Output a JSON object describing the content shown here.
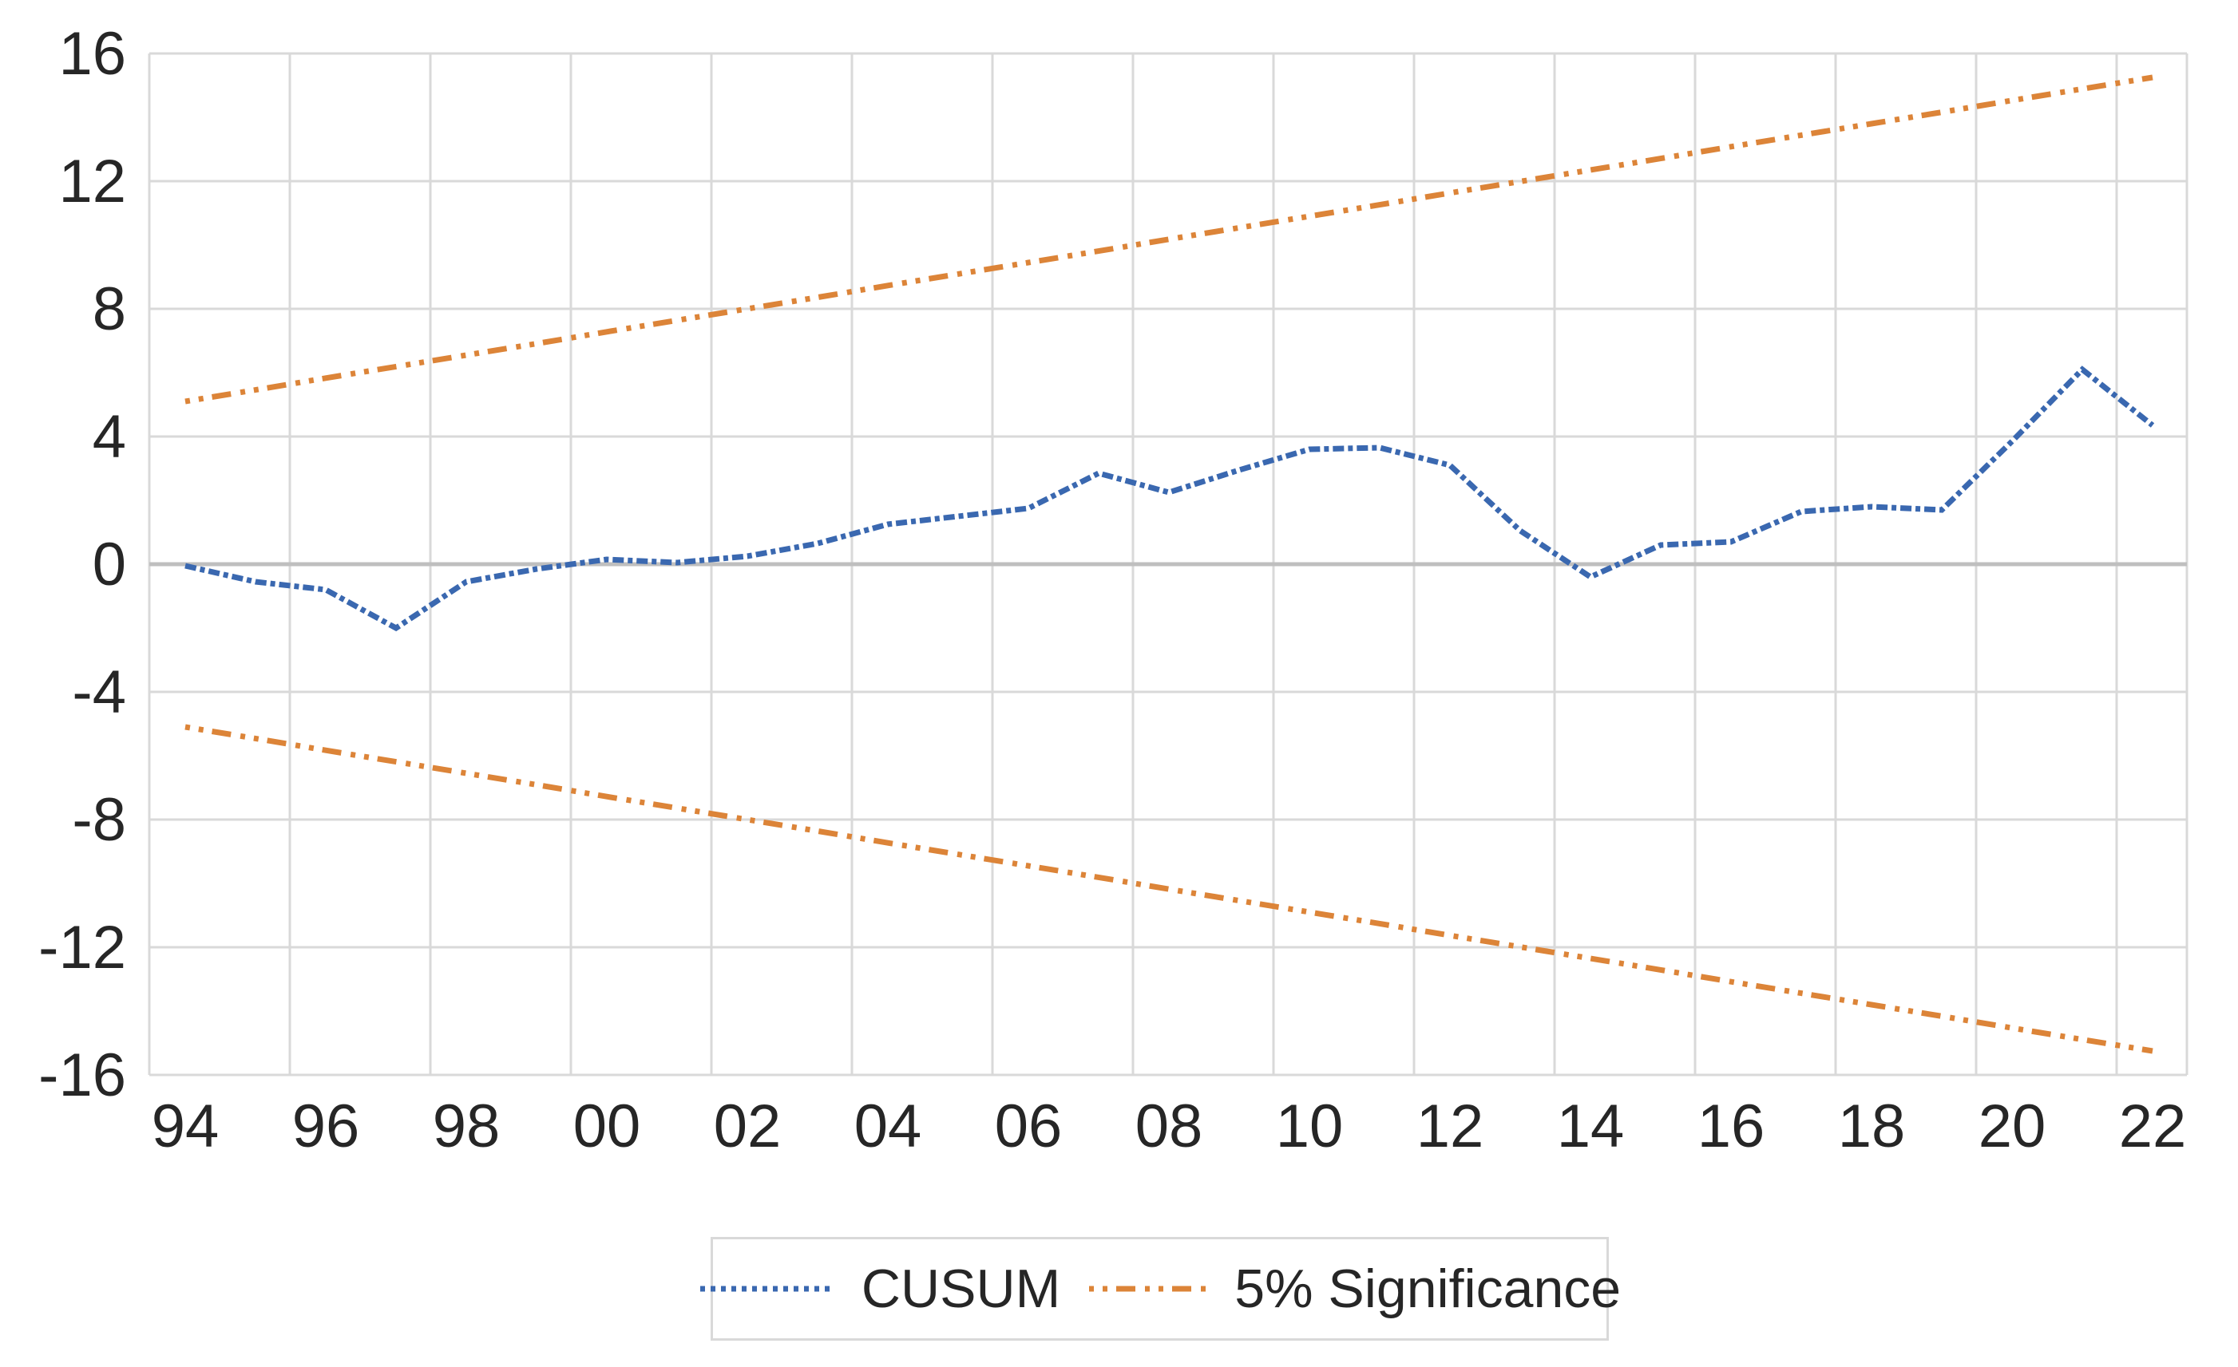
{
  "chart_data": {
    "type": "line",
    "title": "",
    "grid": true,
    "x_axis": {
      "tick_labels": [
        "94",
        "96",
        "98",
        "00",
        "02",
        "04",
        "06",
        "08",
        "10",
        "12",
        "14",
        "16",
        "18",
        "20",
        "22"
      ],
      "years_start": 1994,
      "years_end": 2022,
      "step_years": 1
    },
    "y_axis": {
      "ticks": [
        16,
        12,
        8,
        4,
        0,
        -4,
        -8,
        -12,
        -16
      ],
      "tick_labels": [
        "16",
        "12",
        "8",
        "4",
        "0",
        "-4",
        "-8",
        "-12",
        "-16"
      ],
      "range": [
        -16,
        16
      ]
    },
    "x": [
      1994,
      1995,
      1996,
      1997,
      1998,
      1999,
      2000,
      2001,
      2002,
      2003,
      2004,
      2005,
      2006,
      2007,
      2008,
      2009,
      2010,
      2011,
      2012,
      2013,
      2014,
      2015,
      2016,
      2017,
      2018,
      2019,
      2020,
      2021,
      2022
    ],
    "series": [
      {
        "name": "CUSUM",
        "color": "#3A68B0",
        "line_style": "dense-dotted",
        "values": [
          -0.05,
          -0.55,
          -0.8,
          -2.0,
          -0.55,
          -0.15,
          0.15,
          0.05,
          0.25,
          0.65,
          1.25,
          1.5,
          1.75,
          2.85,
          2.25,
          2.95,
          3.6,
          3.65,
          3.1,
          1.05,
          -0.4,
          0.6,
          0.7,
          1.65,
          1.8,
          1.7,
          3.85,
          6.1,
          4.35
        ]
      },
      {
        "name": "5% Significance (upper bound)",
        "color": "#DC8438",
        "line_style": "dash-dot",
        "values": [
          5.1,
          5.46,
          5.83,
          6.19,
          6.55,
          6.91,
          7.28,
          7.64,
          8.0,
          8.36,
          8.73,
          9.09,
          9.45,
          9.81,
          10.18,
          10.54,
          10.9,
          11.26,
          11.63,
          11.99,
          12.35,
          12.71,
          13.08,
          13.44,
          13.8,
          14.16,
          14.53,
          14.89,
          15.25
        ]
      },
      {
        "name": "5% Significance (lower bound)",
        "color": "#DC8438",
        "line_style": "dash-dot",
        "values": [
          -5.1,
          -5.46,
          -5.83,
          -6.19,
          -6.55,
          -6.91,
          -7.28,
          -7.64,
          -8.0,
          -8.36,
          -8.73,
          -9.09,
          -9.45,
          -9.81,
          -10.18,
          -10.54,
          -10.9,
          -11.26,
          -11.63,
          -11.99,
          -12.35,
          -12.71,
          -13.08,
          -13.44,
          -13.8,
          -14.16,
          -14.53,
          -14.89,
          -15.25
        ]
      }
    ],
    "legend": {
      "position": "bottom-center",
      "items": [
        "CUSUM",
        "5% Significance"
      ]
    },
    "colors": {
      "gridline": "#D9D9D9",
      "zero_line": "#BFBFBF",
      "tick_text": "#262626",
      "background": "#FFFFFF"
    }
  }
}
